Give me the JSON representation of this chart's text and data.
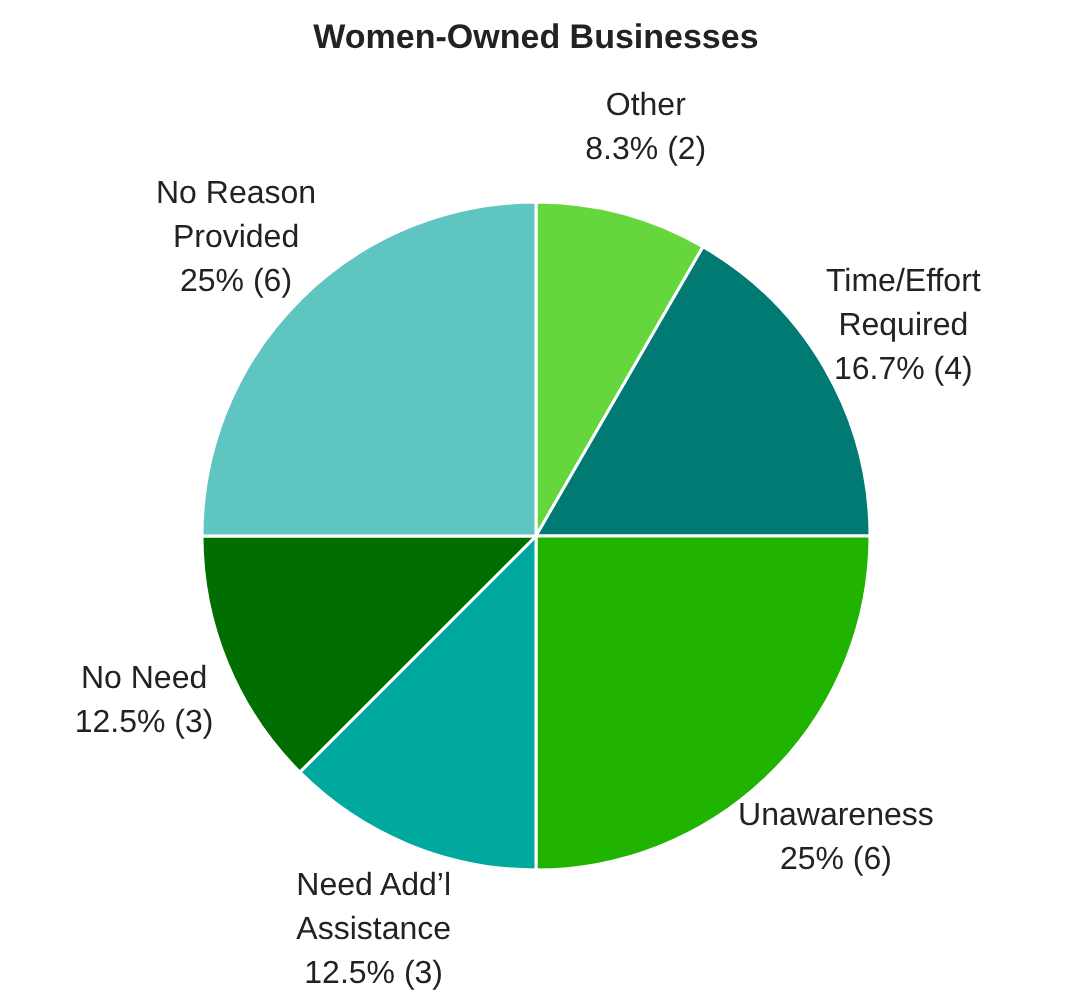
{
  "chart_data": {
    "type": "pie",
    "title": "Women-Owned Businesses",
    "categories": [
      "Other",
      "Time/Effort\nRequired",
      "Unawareness",
      "Need Add’l\nAssistance",
      "No Need",
      "No Reason\nProvided"
    ],
    "values": [
      2,
      4,
      6,
      3,
      3,
      6
    ],
    "colors": [
      "#66d63d",
      "#007a73",
      "#20b300",
      "#00a99d",
      "#006e00",
      "#5ec5c0"
    ],
    "value_labels": [
      "8.3% (2)",
      "16.7% (4)",
      "25% (6)",
      "12.5% (3)",
      "12.5% (3)",
      "25% (6)"
    ]
  }
}
